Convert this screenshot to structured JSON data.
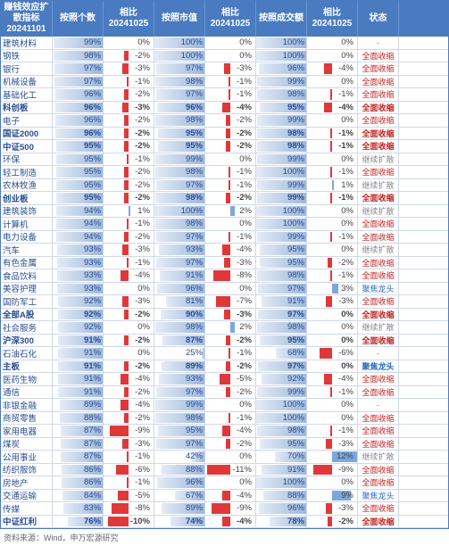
{
  "title_lines": [
    "赚钱效应扩散指标",
    "20241101"
  ],
  "header_cols": [
    "按照个数",
    "相比\n20241025",
    "按照市值",
    "相比\n20241025",
    "按照成交额",
    "相比\n20241025",
    "状态"
  ],
  "col_widths": {
    "name": 58,
    "pct": 57,
    "cmp": 57,
    "status": 46
  },
  "styling": {
    "header_bg": "#4a7bc0",
    "header_fg": "#ffffff",
    "row_border": "#d0d8e8",
    "name_color": "#2a4d8f",
    "pct_bar_color": "rgba(74,123,192,0.55)",
    "neg_bar_color": "#e03838",
    "pos_bar_color": "#7aa8dc",
    "font_size": 9.5,
    "cmp_bar_scale": 12,
    "pct_bar_min": 20,
    "pct_bar_max": 100
  },
  "status_map": {
    "全面收缩": {
      "color": "red"
    },
    "聚焦龙头": {
      "color": "blue"
    },
    "继续扩散": {
      "color": ""
    },
    "-": {
      "color": ""
    }
  },
  "rows": [
    {
      "name": "建筑材料",
      "p1": 99,
      "c1": 0,
      "p2": 100,
      "c2": 0,
      "p3": 100,
      "c3": 0,
      "status": "-",
      "bold": false
    },
    {
      "name": "钢铁",
      "p1": 98,
      "c1": -2,
      "p2": 100,
      "c2": 0,
      "p3": 100,
      "c3": 0,
      "status": "全面收缩",
      "bold": false
    },
    {
      "name": "银行",
      "p1": 97,
      "c1": -3,
      "p2": 97,
      "c2": -3,
      "p3": 96,
      "c3": -4,
      "status": "全面收缩",
      "bold": false
    },
    {
      "name": "机械设备",
      "p1": 97,
      "c1": -1,
      "p2": 98,
      "c2": -1,
      "p3": 99,
      "c3": 0,
      "status": "全面收缩",
      "bold": false
    },
    {
      "name": "基础化工",
      "p1": 96,
      "c1": -2,
      "p2": 97,
      "c2": -1,
      "p3": 98,
      "c3": -1,
      "status": "全面收缩",
      "bold": false
    },
    {
      "name": "科创板",
      "p1": 96,
      "c1": -3,
      "p2": 96,
      "c2": -4,
      "p3": 95,
      "c3": -4,
      "status": "全面收缩",
      "bold": true
    },
    {
      "name": "电子",
      "p1": 96,
      "c1": -2,
      "p2": 98,
      "c2": -2,
      "p3": 99,
      "c3": 0,
      "status": "全面收缩",
      "bold": false
    },
    {
      "name": "国证2000",
      "p1": 96,
      "c1": -2,
      "p2": 95,
      "c2": -2,
      "p3": 98,
      "c3": -1,
      "status": "全面收缩",
      "bold": true
    },
    {
      "name": "中证500",
      "p1": 95,
      "c1": -2,
      "p2": 95,
      "c2": -2,
      "p3": 98,
      "c3": -1,
      "status": "全面收缩",
      "bold": true
    },
    {
      "name": "环保",
      "p1": 95,
      "c1": -1,
      "p2": 99,
      "c2": 0,
      "p3": 99,
      "c3": 0,
      "status": "继续扩散",
      "bold": false
    },
    {
      "name": "轻工制造",
      "p1": 95,
      "c1": -2,
      "p2": 98,
      "c2": -1,
      "p3": 100,
      "c3": -1,
      "status": "全面收缩",
      "bold": false
    },
    {
      "name": "农林牧渔",
      "p1": 95,
      "c1": -2,
      "p2": 97,
      "c2": -1,
      "p3": 99,
      "c3": 1,
      "status": "继续扩散",
      "bold": false
    },
    {
      "name": "创业板",
      "p1": 95,
      "c1": -2,
      "p2": 98,
      "c2": -2,
      "p3": 99,
      "c3": -1,
      "status": "全面收缩",
      "bold": true
    },
    {
      "name": "建筑装饰",
      "p1": 94,
      "c1": 1,
      "p2": 100,
      "c2": 2,
      "p3": 100,
      "c3": 0,
      "status": "继续扩散",
      "bold": false
    },
    {
      "name": "计算机",
      "p1": 94,
      "c1": -1,
      "p2": 98,
      "c2": 0,
      "p3": 100,
      "c3": 0,
      "status": "全面收缩",
      "bold": false
    },
    {
      "name": "电力设备",
      "p1": 94,
      "c1": -2,
      "p2": 97,
      "c2": -1,
      "p3": 99,
      "c3": -1,
      "status": "全面收缩",
      "bold": false
    },
    {
      "name": "汽车",
      "p1": 93,
      "c1": -3,
      "p2": 93,
      "c2": -4,
      "p3": 95,
      "c3": 0,
      "status": "继续扩散",
      "bold": false
    },
    {
      "name": "有色金属",
      "p1": 93,
      "c1": -1,
      "p2": 97,
      "c2": -3,
      "p3": 95,
      "c3": -2,
      "status": "全面收缩",
      "bold": false
    },
    {
      "name": "食品饮料",
      "p1": 93,
      "c1": -4,
      "p2": 91,
      "c2": -8,
      "p3": 98,
      "c3": -1,
      "status": "全面收缩",
      "bold": false
    },
    {
      "name": "美容护理",
      "p1": 93,
      "c1": 0,
      "p2": 96,
      "c2": 0,
      "p3": 97,
      "c3": 3,
      "status": "聚焦龙头",
      "bold": false
    },
    {
      "name": "国防军工",
      "p1": 92,
      "c1": -3,
      "p2": 81,
      "c2": -7,
      "p3": 91,
      "c3": -3,
      "status": "全面收缩",
      "bold": false
    },
    {
      "name": "全部A股",
      "p1": 92,
      "c1": -2,
      "p2": 90,
      "c2": -3,
      "p3": 97,
      "c3": 0,
      "status": "全面收缩",
      "bold": true
    },
    {
      "name": "社会服务",
      "p1": 92,
      "c1": 0,
      "p2": 98,
      "c2": 2,
      "p3": 98,
      "c3": 0,
      "status": "继续扩散",
      "bold": false
    },
    {
      "name": "沪深300",
      "p1": 91,
      "c1": -2,
      "p2": 87,
      "c2": -2,
      "p3": 95,
      "c3": 0,
      "status": "全面收缩",
      "bold": true
    },
    {
      "name": "石油石化",
      "p1": 91,
      "c1": 0,
      "p2": 25,
      "c2": -1,
      "p3": 68,
      "c3": -6,
      "status": "-",
      "bold": false
    },
    {
      "name": "主板",
      "p1": 91,
      "c1": -2,
      "p2": 89,
      "c2": -2,
      "p3": 97,
      "c3": 0,
      "status": "聚焦龙头",
      "bold": true
    },
    {
      "name": "医药生物",
      "p1": 91,
      "c1": -4,
      "p2": 93,
      "c2": -5,
      "p3": 92,
      "c3": -4,
      "status": "全面收缩",
      "bold": false
    },
    {
      "name": "通信",
      "p1": 91,
      "c1": -2,
      "p2": 97,
      "c2": -2,
      "p3": 99,
      "c3": -1,
      "status": "全面收缩",
      "bold": false
    },
    {
      "name": "非银金融",
      "p1": 89,
      "c1": -4,
      "p2": 99,
      "c2": 0,
      "p3": 100,
      "c3": 0,
      "status": "-",
      "bold": false
    },
    {
      "name": "商贸零售",
      "p1": 88,
      "c1": -2,
      "p2": 98,
      "c2": -1,
      "p3": 100,
      "c3": 0,
      "status": "全面收缩",
      "bold": false
    },
    {
      "name": "家用电器",
      "p1": 87,
      "c1": -9,
      "p2": 95,
      "c2": -4,
      "p3": 98,
      "c3": -1,
      "status": "全面收缩",
      "bold": false
    },
    {
      "name": "煤炭",
      "p1": 87,
      "c1": -3,
      "p2": 97,
      "c2": -2,
      "p3": 95,
      "c3": -3,
      "status": "全面收缩",
      "bold": false
    },
    {
      "name": "公用事业",
      "p1": 87,
      "c1": -1,
      "p2": 42,
      "c2": 0,
      "p3": 70,
      "c3": 12,
      "status": "继续扩散",
      "bold": false
    },
    {
      "name": "纺织服饰",
      "p1": 86,
      "c1": -6,
      "p2": 88,
      "c2": -11,
      "p3": 91,
      "c3": -9,
      "status": "全面收缩",
      "bold": false
    },
    {
      "name": "房地产",
      "p1": 86,
      "c1": -1,
      "p2": 96,
      "c2": 0,
      "p3": 100,
      "c3": 0,
      "status": "全面收缩",
      "bold": false
    },
    {
      "name": "交通运输",
      "p1": 84,
      "c1": -5,
      "p2": 67,
      "c2": -4,
      "p3": 88,
      "c3": 9,
      "status": "聚焦龙头",
      "bold": false
    },
    {
      "name": "传媒",
      "p1": 83,
      "c1": -8,
      "p2": 89,
      "c2": -9,
      "p3": 96,
      "c3": -3,
      "status": "全面收缩",
      "bold": false
    },
    {
      "name": "中证红利",
      "p1": 76,
      "c1": -10,
      "p2": 74,
      "c2": -4,
      "p3": 78,
      "c3": -2,
      "status": "全面收缩",
      "bold": true
    }
  ],
  "footer": "资料来源：Wind，申万宏源研究"
}
